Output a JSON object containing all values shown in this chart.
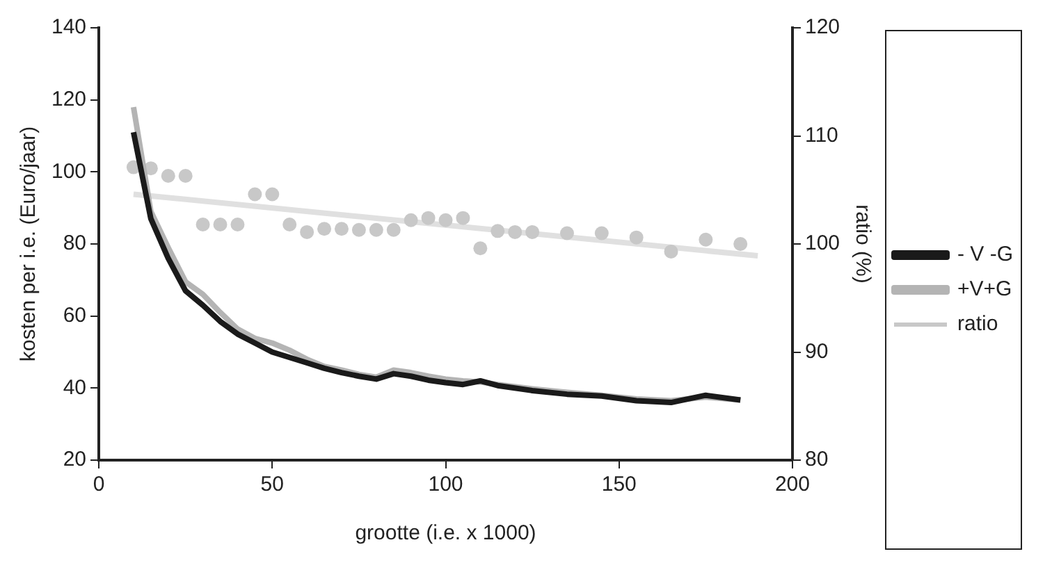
{
  "chart_data": {
    "type": "line",
    "xlabel": "grootte (i.e. x 1000)",
    "ylabel": "kosten per i.e. (Euro/jaar)",
    "y2label": "ratio (%)",
    "xlim": [
      0,
      200
    ],
    "xticks": [
      0,
      50,
      100,
      150,
      200
    ],
    "ylim": [
      20,
      140
    ],
    "yticks": [
      20,
      40,
      60,
      80,
      100,
      120,
      140
    ],
    "y2lim": [
      80,
      120
    ],
    "y2ticks": [
      80,
      90,
      100,
      110,
      120
    ],
    "grid": false,
    "legend": "right",
    "marker": "none",
    "series": [
      {
        "name": "- V -G",
        "color": "#1a1a1a",
        "x": [
          10,
          15,
          20,
          25,
          30,
          35,
          40,
          45,
          50,
          55,
          60,
          65,
          70,
          75,
          80,
          85,
          90,
          95,
          100,
          105,
          110,
          115,
          125,
          135,
          145,
          155,
          165,
          175,
          185
        ],
        "values": [
          111,
          87,
          76,
          67,
          63,
          58.5,
          55,
          52.5,
          50,
          48.5,
          47,
          45.5,
          44.3,
          43.3,
          42.5,
          44,
          43.3,
          42.2,
          41.5,
          41,
          42,
          40.7,
          39.3,
          38.3,
          37.8,
          36.5,
          36,
          38,
          36.7
        ]
      },
      {
        "name": "+V+G",
        "color": "#b4b4b4",
        "x": [
          10,
          15,
          20,
          25,
          30,
          35,
          40,
          45,
          50,
          55,
          60,
          65,
          70,
          75,
          80,
          85,
          90,
          95,
          100,
          105,
          110,
          115,
          125,
          135,
          145,
          155,
          165,
          175,
          185
        ],
        "values": [
          118,
          89,
          79,
          69.5,
          66,
          61,
          56.4,
          53.8,
          52.5,
          50.5,
          48,
          46,
          45,
          43.8,
          43,
          45,
          44.3,
          43.3,
          42.5,
          42,
          41.7,
          41,
          39.8,
          38.8,
          38,
          37,
          36.5,
          37.5,
          36.7
        ]
      },
      {
        "name": "ratio",
        "type": "scatter",
        "axis": "y2",
        "color": "#c8c8c8",
        "marker": "circle",
        "x": [
          10,
          15,
          20,
          25,
          30,
          35,
          40,
          45,
          50,
          55,
          60,
          65,
          70,
          75,
          80,
          85,
          90,
          95,
          100,
          105,
          110,
          115,
          120,
          125,
          135,
          145,
          155,
          165,
          175,
          185
        ],
        "values": [
          107.1,
          107,
          106.3,
          106.3,
          101.8,
          101.8,
          101.8,
          104.6,
          104.6,
          101.8,
          101.1,
          101.4,
          101.4,
          101.3,
          101.3,
          101.3,
          102.2,
          102.4,
          102.2,
          102.4,
          99.6,
          101.2,
          101.1,
          101.1,
          101,
          101,
          100.6,
          99.3,
          100.4,
          100
        ]
      },
      {
        "type": "line",
        "axis": "y2",
        "color": "#e0e0e0",
        "x": [
          10,
          190
        ],
        "values": [
          104.6,
          98.9
        ]
      }
    ]
  }
}
